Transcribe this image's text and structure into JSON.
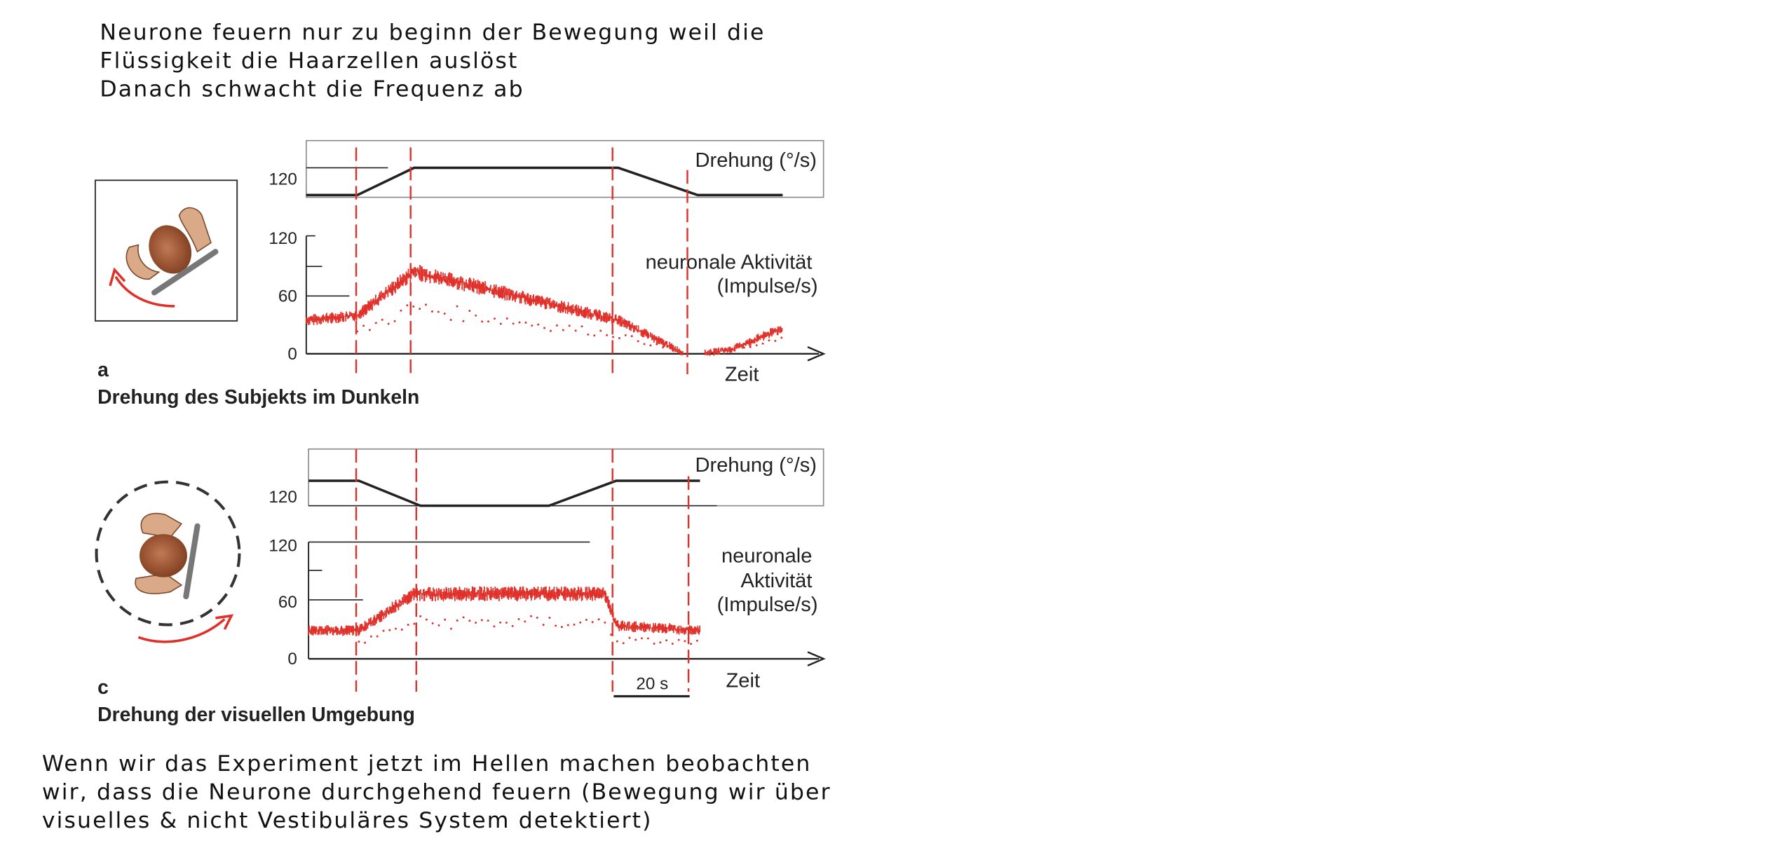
{
  "notes": {
    "top": [
      "Neurone feuern nur zu beginn der Bewegung weil die",
      "Flüssigkeit die Haarzellen auslöst",
      "Danach schwacht die Frequenz ab"
    ],
    "bottom": [
      "Wenn wir das Experiment jetzt im Hellen machen beobachten",
      "wir, dass die Neurone durchgehend feuern (Bewegung wir über",
      "visuelles & nicht Vestibuläres System detektiert)"
    ]
  },
  "panel_a": {
    "letter": "a",
    "caption": "Drehung des Subjekts im Dunkeln",
    "rotation_label": "Drehung (°/s)",
    "activity_label": [
      "neuronale Aktivität",
      "(Impulse/s)"
    ],
    "x_label": "Zeit"
  },
  "panel_c": {
    "letter": "c",
    "caption": "Drehung der visuellen Umgebung",
    "rotation_label": "Drehung (°/s)",
    "activity_label": [
      "neuronale",
      "Aktivität",
      "(Impulse/s)"
    ],
    "x_label": "Zeit",
    "scale_bar": "20 s"
  },
  "colors": {
    "trace": "#e0302a",
    "marker": "#e0302a",
    "line": "#222222"
  },
  "chart_data": [
    {
      "type": "line",
      "panel": "a",
      "title": "Drehung (°/s)",
      "xlabel": "Zeit",
      "ylabel": "",
      "yticks": [
        120
      ],
      "x": [
        0,
        9,
        19,
        55,
        69,
        84
      ],
      "values": [
        0,
        0,
        120,
        120,
        0,
        0
      ]
    },
    {
      "type": "scatter",
      "panel": "a",
      "title": "",
      "ylabel": "neuronale Aktivität (Impulse/s)",
      "xlabel": "Zeit",
      "ylim": [
        0,
        120
      ],
      "yticks": [
        0,
        60,
        120
      ],
      "x": [
        0,
        9,
        19,
        55,
        67,
        69,
        75,
        84
      ],
      "values": [
        35,
        40,
        85,
        35,
        0,
        0,
        5,
        27
      ]
    },
    {
      "type": "line",
      "panel": "c",
      "title": "Drehung (°/s)",
      "xlabel": "Zeit",
      "ylabel": "",
      "yticks": [
        120
      ],
      "x": [
        0,
        9,
        20,
        43,
        55,
        70
      ],
      "values": [
        120,
        120,
        0,
        0,
        120,
        120
      ]
    },
    {
      "type": "scatter",
      "panel": "c",
      "title": "",
      "ylabel": "neuronale Aktivität (Impulse/s)",
      "xlabel": "Zeit",
      "ylim": [
        0,
        120
      ],
      "yticks": [
        0,
        60,
        120
      ],
      "x": [
        0,
        9,
        19,
        53,
        55,
        70
      ],
      "values": [
        30,
        30,
        68,
        68,
        35,
        30
      ]
    }
  ]
}
